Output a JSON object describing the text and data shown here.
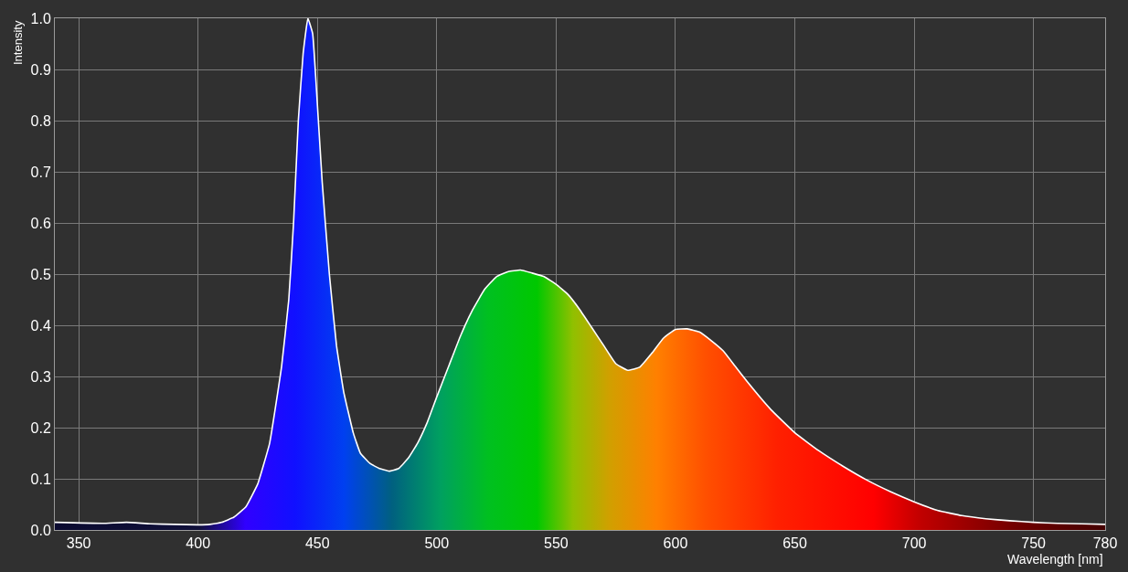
{
  "chart_data": {
    "type": "area",
    "xlabel": "Wavelength [nm]",
    "ylabel": "Intensity",
    "x": [
      340,
      360,
      370,
      380,
      390,
      400,
      405,
      410,
      415,
      420,
      425,
      430,
      435,
      438,
      440,
      442,
      444,
      446,
      448,
      450,
      452,
      455,
      458,
      461,
      465,
      468,
      472,
      476,
      480,
      484,
      488,
      492,
      496,
      500,
      505,
      510,
      515,
      520,
      525,
      530,
      535,
      540,
      545,
      550,
      555,
      560,
      565,
      570,
      575,
      580,
      585,
      590,
      595,
      600,
      605,
      610,
      615,
      620,
      625,
      630,
      640,
      650,
      660,
      670,
      680,
      690,
      700,
      710,
      720,
      730,
      740,
      750,
      760,
      770,
      780
    ],
    "series": [
      {
        "color": "#ffffff",
        "values": [
          0.015,
          0.013,
          0.015,
          0.012,
          0.011,
          0.01,
          0.011,
          0.015,
          0.025,
          0.045,
          0.09,
          0.17,
          0.32,
          0.45,
          0.6,
          0.8,
          0.93,
          1.0,
          0.97,
          0.83,
          0.68,
          0.5,
          0.36,
          0.27,
          0.19,
          0.15,
          0.13,
          0.12,
          0.115,
          0.12,
          0.14,
          0.17,
          0.21,
          0.26,
          0.32,
          0.38,
          0.43,
          0.47,
          0.495,
          0.505,
          0.508,
          0.502,
          0.495,
          0.48,
          0.46,
          0.43,
          0.395,
          0.36,
          0.325,
          0.312,
          0.318,
          0.345,
          0.375,
          0.392,
          0.393,
          0.387,
          0.37,
          0.35,
          0.32,
          0.29,
          0.235,
          0.19,
          0.155,
          0.125,
          0.098,
          0.075,
          0.055,
          0.038,
          0.028,
          0.022,
          0.018,
          0.015,
          0.013,
          0.012,
          0.011
        ]
      }
    ],
    "xlim": [
      340,
      780
    ],
    "xticks": [
      350,
      400,
      450,
      500,
      550,
      600,
      650,
      700,
      750,
      780
    ],
    "ylim": [
      0,
      1
    ],
    "yticks": [
      {
        "value": 0,
        "label": "0.0"
      },
      0.1,
      0.2,
      0.3,
      0.4,
      0.5,
      0.6,
      0.7,
      0.8,
      0.9,
      {
        "value": 1,
        "label": "1.0"
      }
    ],
    "grid": true
  }
}
